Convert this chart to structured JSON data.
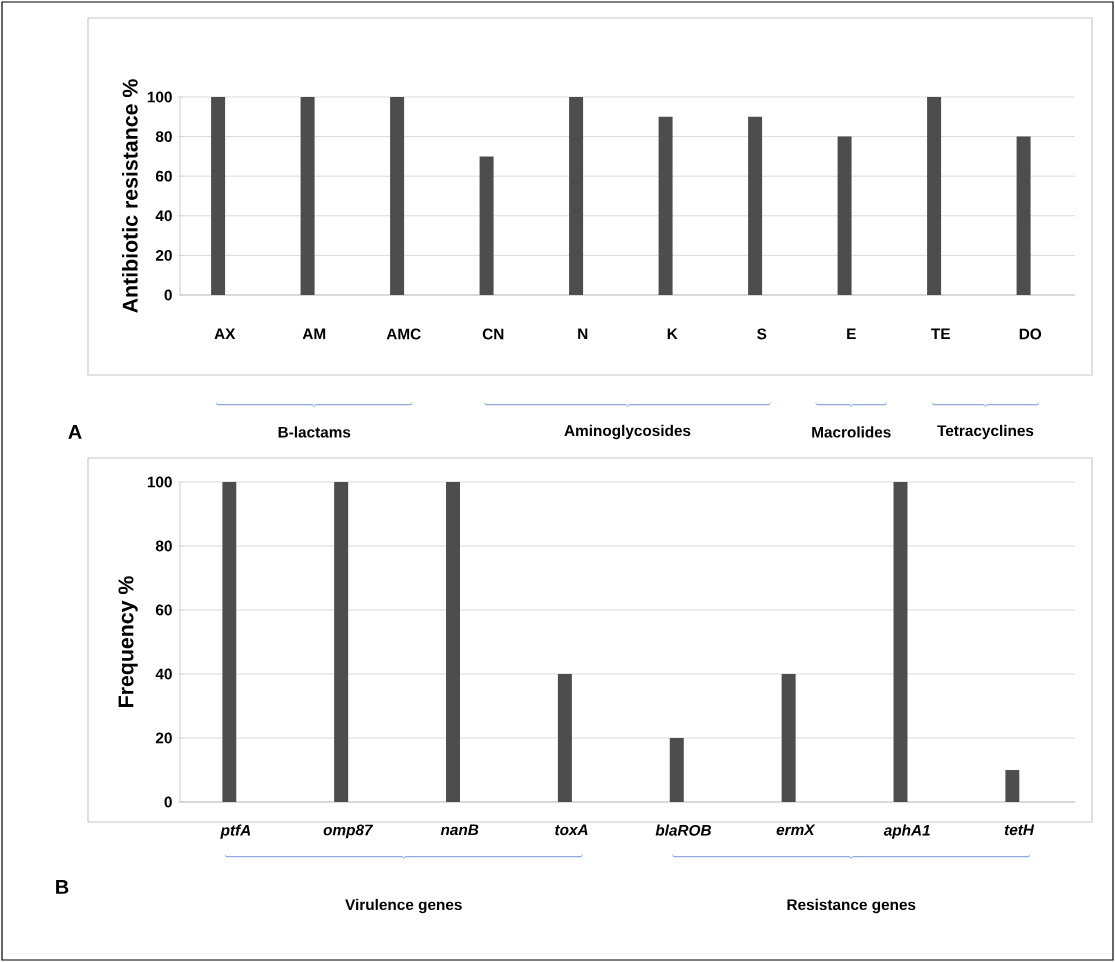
{
  "chart_data": [
    {
      "type": "bar",
      "ylabel": "Antibiotic resistance %",
      "categories": [
        "AX",
        "AM",
        "AMC",
        "CN",
        "N",
        "K",
        "S",
        "E",
        "TE",
        "DO"
      ],
      "values": [
        100,
        100,
        100,
        70,
        100,
        90,
        90,
        80,
        100,
        80
      ],
      "color": "#4d4d4d",
      "ylim": [
        0,
        100
      ],
      "yticks": [
        0,
        20,
        40,
        60,
        80,
        100
      ],
      "grid": "y",
      "annotations": [
        "A",
        "B-lactams",
        "Aminoglycosides",
        "Macrolides",
        "Tetracyclines"
      ]
    },
    {
      "type": "bar",
      "ylabel": "Frequency %",
      "categories": [
        "ptfA",
        "omp87",
        "nanB",
        "toxA",
        "blaROB",
        "ermX",
        "aphA1",
        "tetH"
      ],
      "values": [
        100,
        100,
        100,
        40,
        20,
        40,
        100,
        10
      ],
      "color": "#4d4d4d",
      "ylim": [
        0,
        100
      ],
      "yticks": [
        0,
        20,
        40,
        60,
        80,
        100
      ],
      "grid": "y",
      "annotations": [
        "B",
        "Virulence genes",
        "Resistance genes"
      ]
    }
  ]
}
